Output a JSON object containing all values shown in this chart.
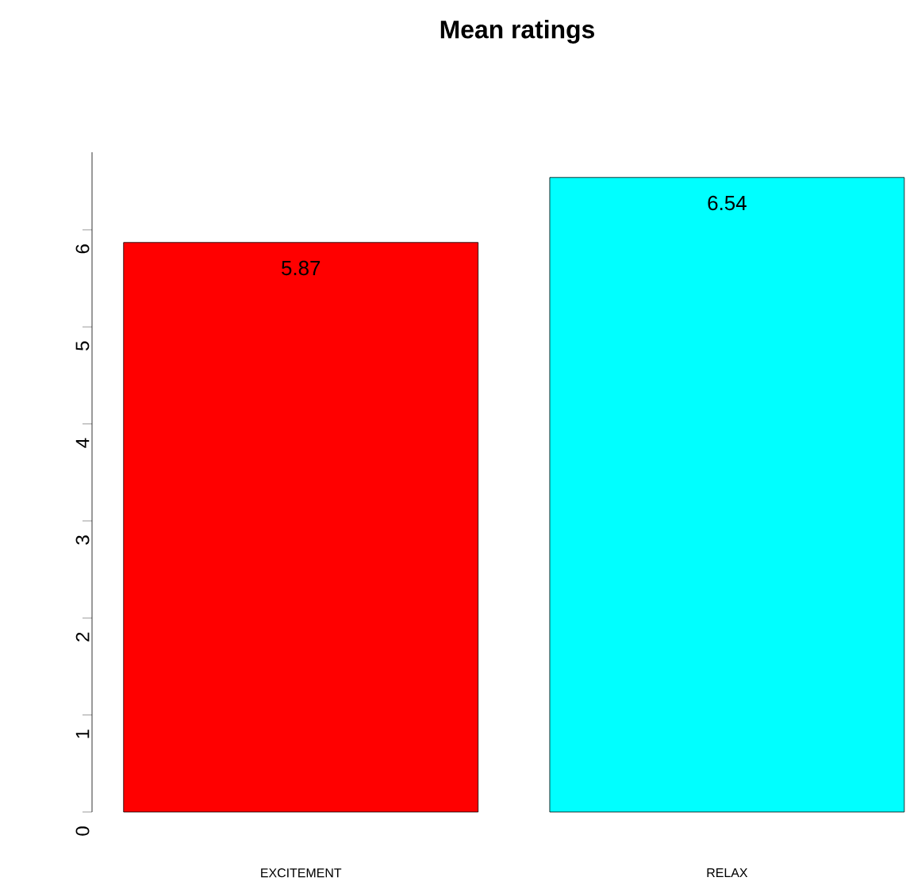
{
  "chart_data": {
    "type": "bar",
    "title": "Mean ratings",
    "categories": [
      "EXCITEMENT",
      "RELAX"
    ],
    "values": [
      5.87,
      6.54
    ],
    "colors": [
      "#ff0000",
      "#00ffff"
    ],
    "ylim": [
      0,
      6.8
    ],
    "yticks": [
      0,
      1,
      2,
      3,
      4,
      5,
      6
    ],
    "data_labels": true
  }
}
